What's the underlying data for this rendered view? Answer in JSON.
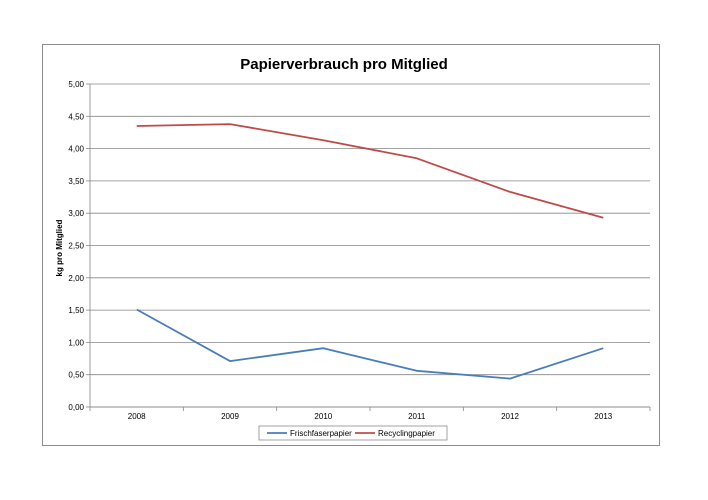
{
  "chart_data": {
    "type": "line",
    "title": "Papierverbrauch pro Mitglied",
    "xlabel": "",
    "ylabel": "kg pro Mitglied",
    "categories": [
      "2008",
      "2009",
      "2010",
      "2011",
      "2012",
      "2013"
    ],
    "ylim": [
      0,
      5
    ],
    "yticks": [
      "0,00",
      "0,50",
      "1,00",
      "1,50",
      "2,00",
      "2,50",
      "3,00",
      "3,50",
      "4,00",
      "4,50",
      "5,00"
    ],
    "grid": true,
    "legend_position": "bottom",
    "series": [
      {
        "name": "Frischfaserpapier",
        "color": "#4a7ebb",
        "values": [
          1.51,
          0.71,
          0.91,
          0.56,
          0.44,
          0.91
        ]
      },
      {
        "name": "Recyclingpapier",
        "color": "#be4b48",
        "values": [
          4.35,
          4.38,
          4.13,
          3.85,
          3.33,
          2.93
        ]
      }
    ]
  }
}
